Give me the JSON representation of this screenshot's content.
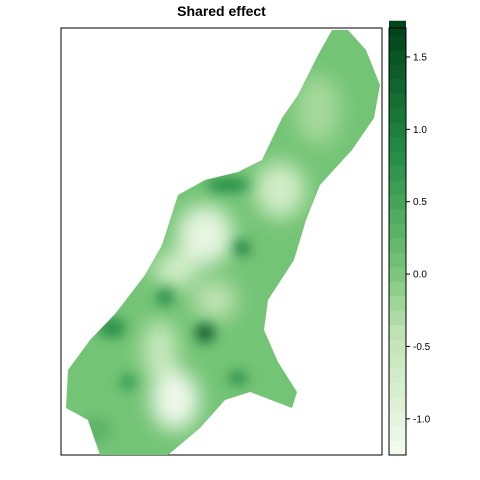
{
  "title": "Shared effect",
  "legend": {
    "ticks": [
      {
        "value": 1.5,
        "label": "1.5"
      },
      {
        "value": 1.0,
        "label": "1.0"
      },
      {
        "value": 0.5,
        "label": "0.5"
      },
      {
        "value": 0.0,
        "label": "0.0"
      },
      {
        "value": -0.5,
        "label": "-0.5"
      },
      {
        "value": -1.0,
        "label": "-1.0"
      }
    ],
    "range": [
      -1.25,
      1.7
    ],
    "step": 0.1,
    "colors": {
      "low": "#f4fbf1",
      "mid_light": "#bfe2b3",
      "mid": "#74c476",
      "high": "#238b45",
      "top": "#00441b"
    }
  },
  "map": {
    "frame_color": "#000000",
    "hotspots": [
      {
        "name": "north-edge-dark",
        "value": 1.2
      },
      {
        "name": "center-dark-1",
        "value": 1.3
      },
      {
        "name": "center-dark-2",
        "value": 1.6
      },
      {
        "name": "west-dark",
        "value": 1.0
      },
      {
        "name": "south-dark",
        "value": 1.1
      },
      {
        "name": "light-valley",
        "value": -1.0
      }
    ]
  }
}
